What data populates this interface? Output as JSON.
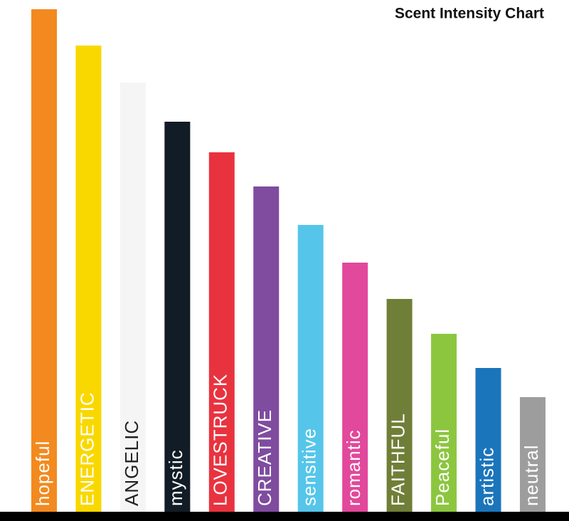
{
  "chart_data": {
    "type": "bar",
    "title": "Scent Intensity Chart",
    "categories": [
      "hopeful",
      "ENERGETIC",
      "ANGELIC",
      "mystic",
      "LOVESTRUCK",
      "CREATIVE",
      "sensitive",
      "romantic",
      "FAITHFUL",
      "Peaceful",
      "artistic",
      "neutral"
    ],
    "values": [
      706,
      655,
      603,
      548,
      505,
      457,
      403,
      350,
      299,
      250,
      202,
      161
    ],
    "colors": [
      "#f28a1f",
      "#f9d800",
      "#f5f5f5",
      "#111c26",
      "#e8333f",
      "#7f4c9f",
      "#55c6e9",
      "#e2489b",
      "#6f7f38",
      "#8cc63f",
      "#1b75bb",
      "#9d9d9d"
    ],
    "label_colors": [
      "#ffffff",
      "#ffffff",
      "#222222",
      "#ffffff",
      "#ffffff",
      "#ffffff",
      "#ffffff",
      "#ffffff",
      "#ffffff",
      "#ffffff",
      "#ffffff",
      "#ffffff"
    ]
  }
}
